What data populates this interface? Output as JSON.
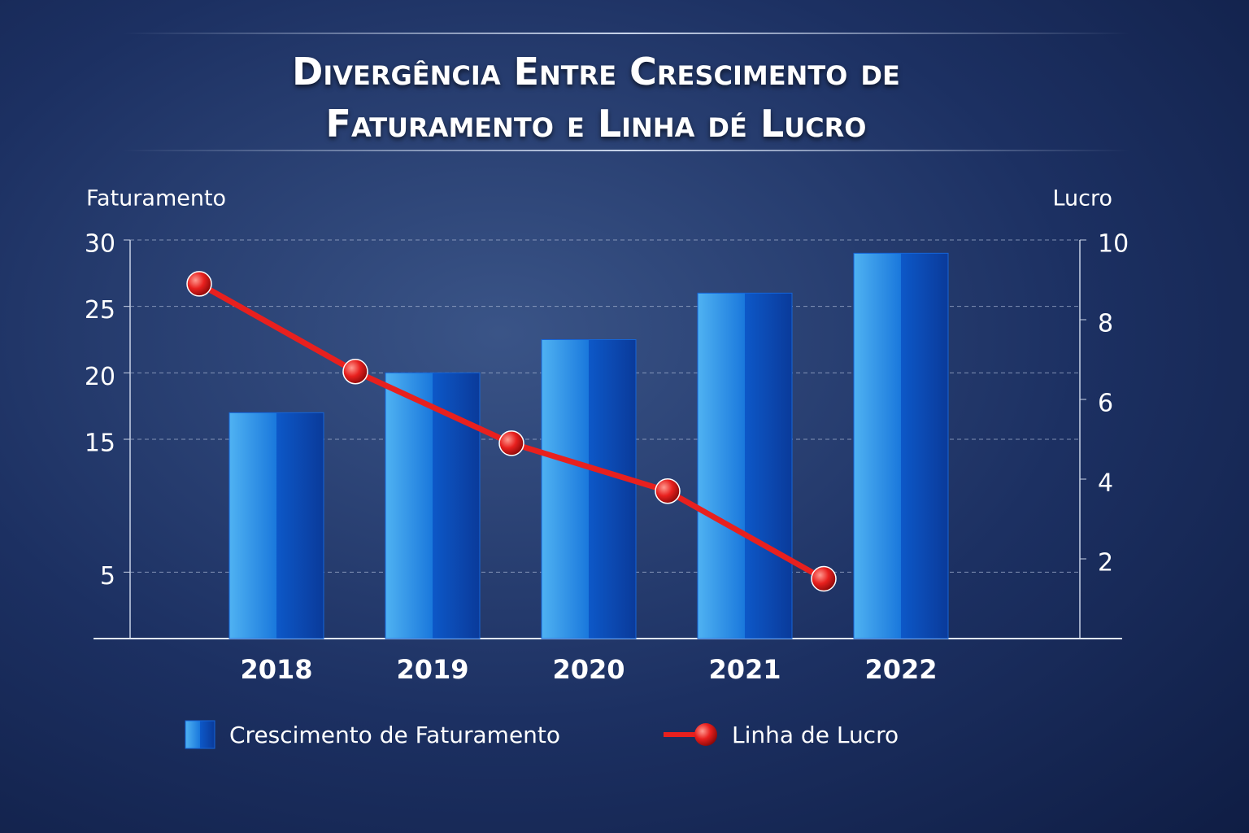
{
  "chart_data": {
    "type": "bar-line",
    "title": "Divergência Entre Crescimento de Faturamento e Linha dé Lucro",
    "y_label": "Faturamento",
    "y2_label": "Lucro",
    "categories": [
      "2018",
      "2019",
      "2020",
      "2021",
      "2022"
    ],
    "series": [
      {
        "name": "Crescimento de Faturamento",
        "color": "#1565d8",
        "type": "bar",
        "values": [
          17,
          20,
          22.5,
          26,
          29
        ]
      },
      {
        "name": "Linha de Lucro",
        "color": "#e8201e",
        "type": "line",
        "axis": "y2",
        "values": [
          8.9,
          6.7,
          4.9,
          3.7,
          1.5
        ]
      }
    ],
    "ylim": [
      0,
      30
    ],
    "yticks": [
      5,
      15,
      20,
      25,
      30
    ],
    "y2lim": [
      0,
      10
    ],
    "y2ticks": [
      2,
      4,
      6,
      8,
      10
    ],
    "grid": true
  }
}
